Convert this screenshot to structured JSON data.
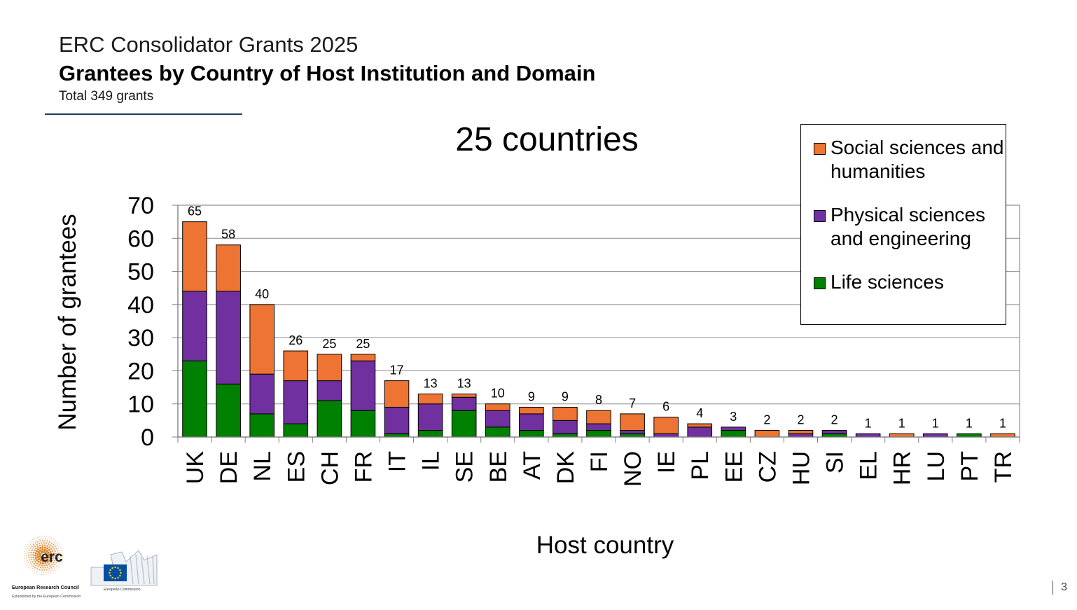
{
  "header": {
    "title": "ERC Consolidator Grants 2025",
    "subtitle": "Grantees by Country of Host Institution and Domain",
    "total": "Total 349 grants"
  },
  "page_number": "3",
  "logos": {
    "erc_mark": "erc",
    "erc_name": "European Research Council",
    "erc_tagline": "Established by the European Commission",
    "ec_name": "European Commission"
  },
  "colors": {
    "social": "#ED7433",
    "physical": "#7030A0",
    "life": "#008000"
  },
  "chart_data": {
    "type": "bar",
    "stacked": true,
    "title": "25 countries",
    "xlabel": "Host country",
    "ylabel": "Number of grantees",
    "ylim": [
      0,
      70
    ],
    "yticks": [
      0,
      10,
      20,
      30,
      40,
      50,
      60,
      70
    ],
    "grid": true,
    "legend_position": "top-right",
    "categories": [
      "UK",
      "DE",
      "NL",
      "ES",
      "CH",
      "FR",
      "IT",
      "IL",
      "SE",
      "BE",
      "AT",
      "DK",
      "FI",
      "NO",
      "IE",
      "PL",
      "EE",
      "CZ",
      "HU",
      "SI",
      "EL",
      "HR",
      "LU",
      "PT",
      "TR"
    ],
    "totals": [
      65,
      58,
      40,
      26,
      25,
      25,
      17,
      13,
      13,
      10,
      9,
      9,
      8,
      7,
      6,
      4,
      3,
      2,
      2,
      2,
      1,
      1,
      1,
      1,
      1
    ],
    "series": [
      {
        "name": "Life sciences",
        "values": [
          23,
          16,
          7,
          4,
          11,
          8,
          1,
          2,
          8,
          3,
          2,
          1,
          2,
          1,
          0,
          0,
          2,
          0,
          0,
          1,
          0,
          0,
          0,
          1,
          0
        ]
      },
      {
        "name": "Physical sciences and engineering",
        "values": [
          21,
          28,
          12,
          13,
          6,
          15,
          8,
          8,
          4,
          5,
          5,
          4,
          2,
          1,
          1,
          3,
          1,
          0,
          1,
          1,
          1,
          0,
          1,
          0,
          0
        ]
      },
      {
        "name": "Social sciences and humanities",
        "values": [
          21,
          14,
          21,
          9,
          8,
          2,
          8,
          3,
          1,
          2,
          2,
          4,
          4,
          5,
          5,
          1,
          0,
          2,
          1,
          0,
          0,
          1,
          0,
          0,
          1
        ]
      }
    ]
  }
}
